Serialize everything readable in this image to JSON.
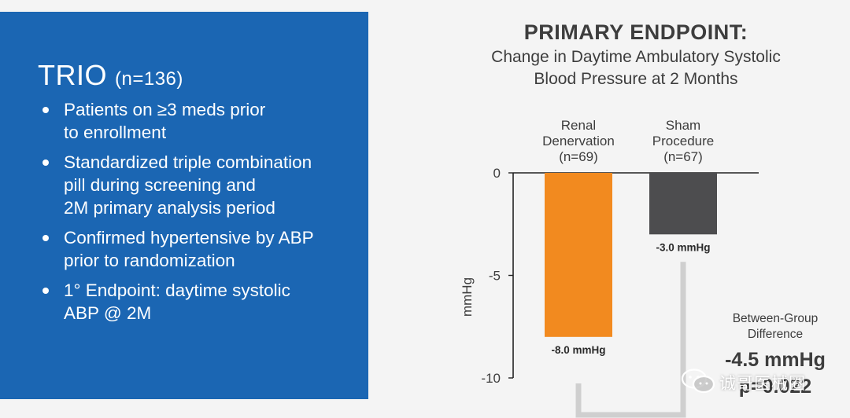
{
  "panel": {
    "title": "TRIO",
    "subtitle": "(n=136)",
    "bullets": [
      [
        "Patients on ≥3 meds prior",
        "to enrollment"
      ],
      [
        "Standardized triple combination",
        "pill during screening and",
        "2M primary analysis period"
      ],
      [
        "Confirmed hypertensive by ABP",
        "prior to randomization"
      ],
      [
        "1° Endpoint: daytime systolic",
        "ABP @ 2M"
      ]
    ]
  },
  "colors": {
    "panel_bg": "#1b66b3",
    "renal_bar": "#f28a1f",
    "sham_bar": "#4d4d4f",
    "bracket": "#cfcfcf",
    "text_dark": "#3d3d3d"
  },
  "chart_data": {
    "type": "bar",
    "title": "PRIMARY ENDPOINT:",
    "subtitle_lines": [
      "Change in Daytime Ambulatory Systolic",
      "Blood Pressure at 2 Months"
    ],
    "ylabel": "mmHg",
    "ylim": [
      -10,
      0
    ],
    "yticks": [
      0,
      -5,
      -10
    ],
    "ytick_labels": [
      "0",
      "-5",
      "-10"
    ],
    "categories": [
      [
        "Renal",
        "Denervation",
        "(n=69)"
      ],
      [
        "Sham",
        "Procedure",
        "(n=67)"
      ]
    ],
    "values": [
      -8.0,
      -3.0
    ],
    "value_labels": [
      "-8.0 mmHg",
      "-3.0 mmHg"
    ],
    "annotation": {
      "label_lines": [
        "Between-Group",
        "Difference"
      ],
      "value": "-4.5 mmHg",
      "pvalue": "p=0.022"
    }
  },
  "watermark": "诚哥医械圈"
}
